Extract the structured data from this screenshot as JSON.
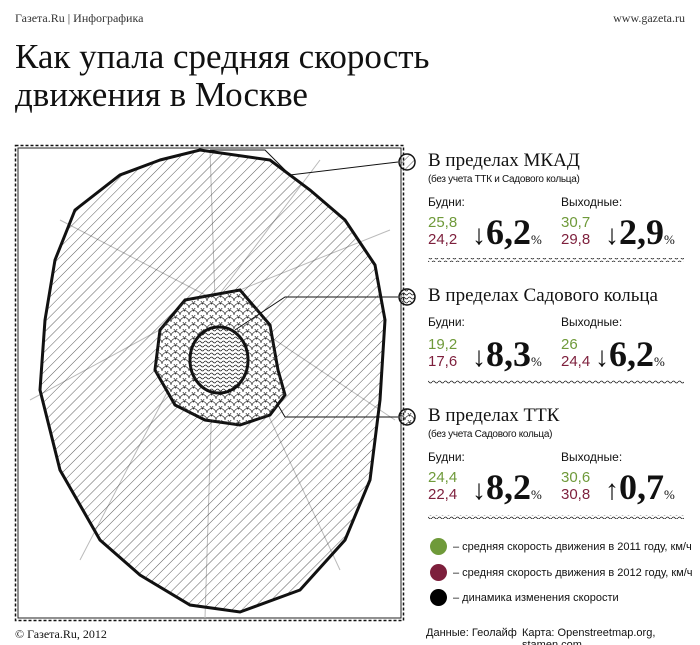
{
  "header": {
    "source": "Газета.Ru | Инфографика",
    "site": "www.gazeta.ru"
  },
  "title_line1": "Как упала средняя скорость",
  "title_line2": "движения в Москве",
  "sections": [
    {
      "title": "В пределах МКАД",
      "subtitle": "(без учета ТТК и Садового кольца)",
      "weekday_label": "Будни:",
      "weekend_label": "Выходные:",
      "weekday": {
        "y2011": "25,8",
        "y2012": "24,2",
        "direction": "down",
        "change": "6,2"
      },
      "weekend": {
        "y2011": "30,7",
        "y2012": "29,8",
        "direction": "down",
        "change": "2,9"
      }
    },
    {
      "title": "В пределах Садового кольца",
      "subtitle": "",
      "weekday_label": "Будни:",
      "weekend_label": "Выходные:",
      "weekday": {
        "y2011": "19,2",
        "y2012": "17,6",
        "direction": "down",
        "change": "8,3"
      },
      "weekend": {
        "y2011": "26",
        "y2012": "24,4",
        "direction": "down",
        "change": "6,2"
      }
    },
    {
      "title": "В пределах ТТК",
      "subtitle": "(без учета Садового кольца)",
      "weekday_label": "Будни:",
      "weekend_label": "Выходные:",
      "weekday": {
        "y2011": "24,4",
        "y2012": "22,4",
        "direction": "down",
        "change": "8,2"
      },
      "weekend": {
        "y2011": "30,6",
        "y2012": "30,8",
        "direction": "up",
        "change": "0,7"
      }
    }
  ],
  "percent": "%",
  "arrow_down": "↓",
  "arrow_up": "↑",
  "legend": [
    {
      "color": "#6f9a3a",
      "text": "– средняя скорость движения в 2011 году, км/ч"
    },
    {
      "color": "#7d1f3c",
      "text": "– средняя скорость движения в 2012 году, км/ч"
    },
    {
      "color": "#000000",
      "text": "– динамика изменения скорости"
    }
  ],
  "footer": {
    "copyright": "© Газета.Ru, 2012",
    "data_source": "Данные: Геолайф",
    "map_source": "Карта: Openstreetmap.org, stamen.com"
  }
}
